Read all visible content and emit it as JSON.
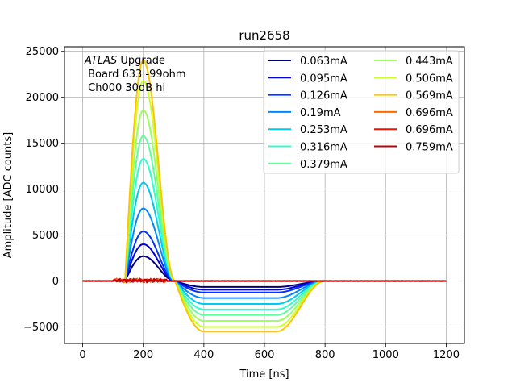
{
  "chart_data": {
    "type": "line",
    "title": "run2658",
    "xlabel": "Time [ns]",
    "ylabel": "Amplitude [ADC counts]",
    "xlim": [
      -60,
      1260
    ],
    "ylim": [
      -6800,
      25500
    ],
    "xticks": [
      0,
      200,
      400,
      600,
      800,
      1000,
      1200
    ],
    "yticks": [
      -5000,
      0,
      5000,
      10000,
      15000,
      20000,
      25000
    ],
    "grid": true,
    "legend_position": "top-right",
    "legend_columns": 2,
    "annotation": {
      "italic": "ATLAS",
      "rest": " Upgrade",
      "line2": " Board 633 -99ohm",
      "line3": " Ch000 30dB hi"
    },
    "series": [
      {
        "name": "0.063mA",
        "color": "#00007f",
        "peak": 2700,
        "under": -650,
        "noise": false
      },
      {
        "name": "0.095mA",
        "color": "#0000e0",
        "peak": 4000,
        "under": -950,
        "noise": false
      },
      {
        "name": "0.126mA",
        "color": "#0034ff",
        "peak": 5400,
        "under": -1250,
        "noise": false
      },
      {
        "name": "0.19mA",
        "color": "#0088ff",
        "peak": 7900,
        "under": -1850,
        "noise": false
      },
      {
        "name": "0.253mA",
        "color": "#00c8f0",
        "peak": 10700,
        "under": -2500,
        "noise": false
      },
      {
        "name": "0.316mA",
        "color": "#2cffca",
        "peak": 13300,
        "under": -3100,
        "noise": false
      },
      {
        "name": "0.379mA",
        "color": "#5dff9a",
        "peak": 15800,
        "under": -3700,
        "noise": false
      },
      {
        "name": "0.443mA",
        "color": "#9aff5d",
        "peak": 18600,
        "under": -4350,
        "noise": false
      },
      {
        "name": "0.506mA",
        "color": "#caff2c",
        "peak": 21800,
        "under": -5000,
        "noise": false
      },
      {
        "name": "0.569mA",
        "color": "#ffc400",
        "peak": 24000,
        "under": -5500,
        "noise": false
      },
      {
        "name": "0.696mA",
        "color": "#ff6800",
        "peak": 0,
        "under": 0,
        "noise": true
      },
      {
        "name": "0.696mA",
        "color": "#f01300",
        "peak": 0,
        "under": 0,
        "noise": true
      },
      {
        "name": "0.759mA",
        "color": "#c00000",
        "peak": 0,
        "under": 0,
        "noise": true
      }
    ]
  }
}
